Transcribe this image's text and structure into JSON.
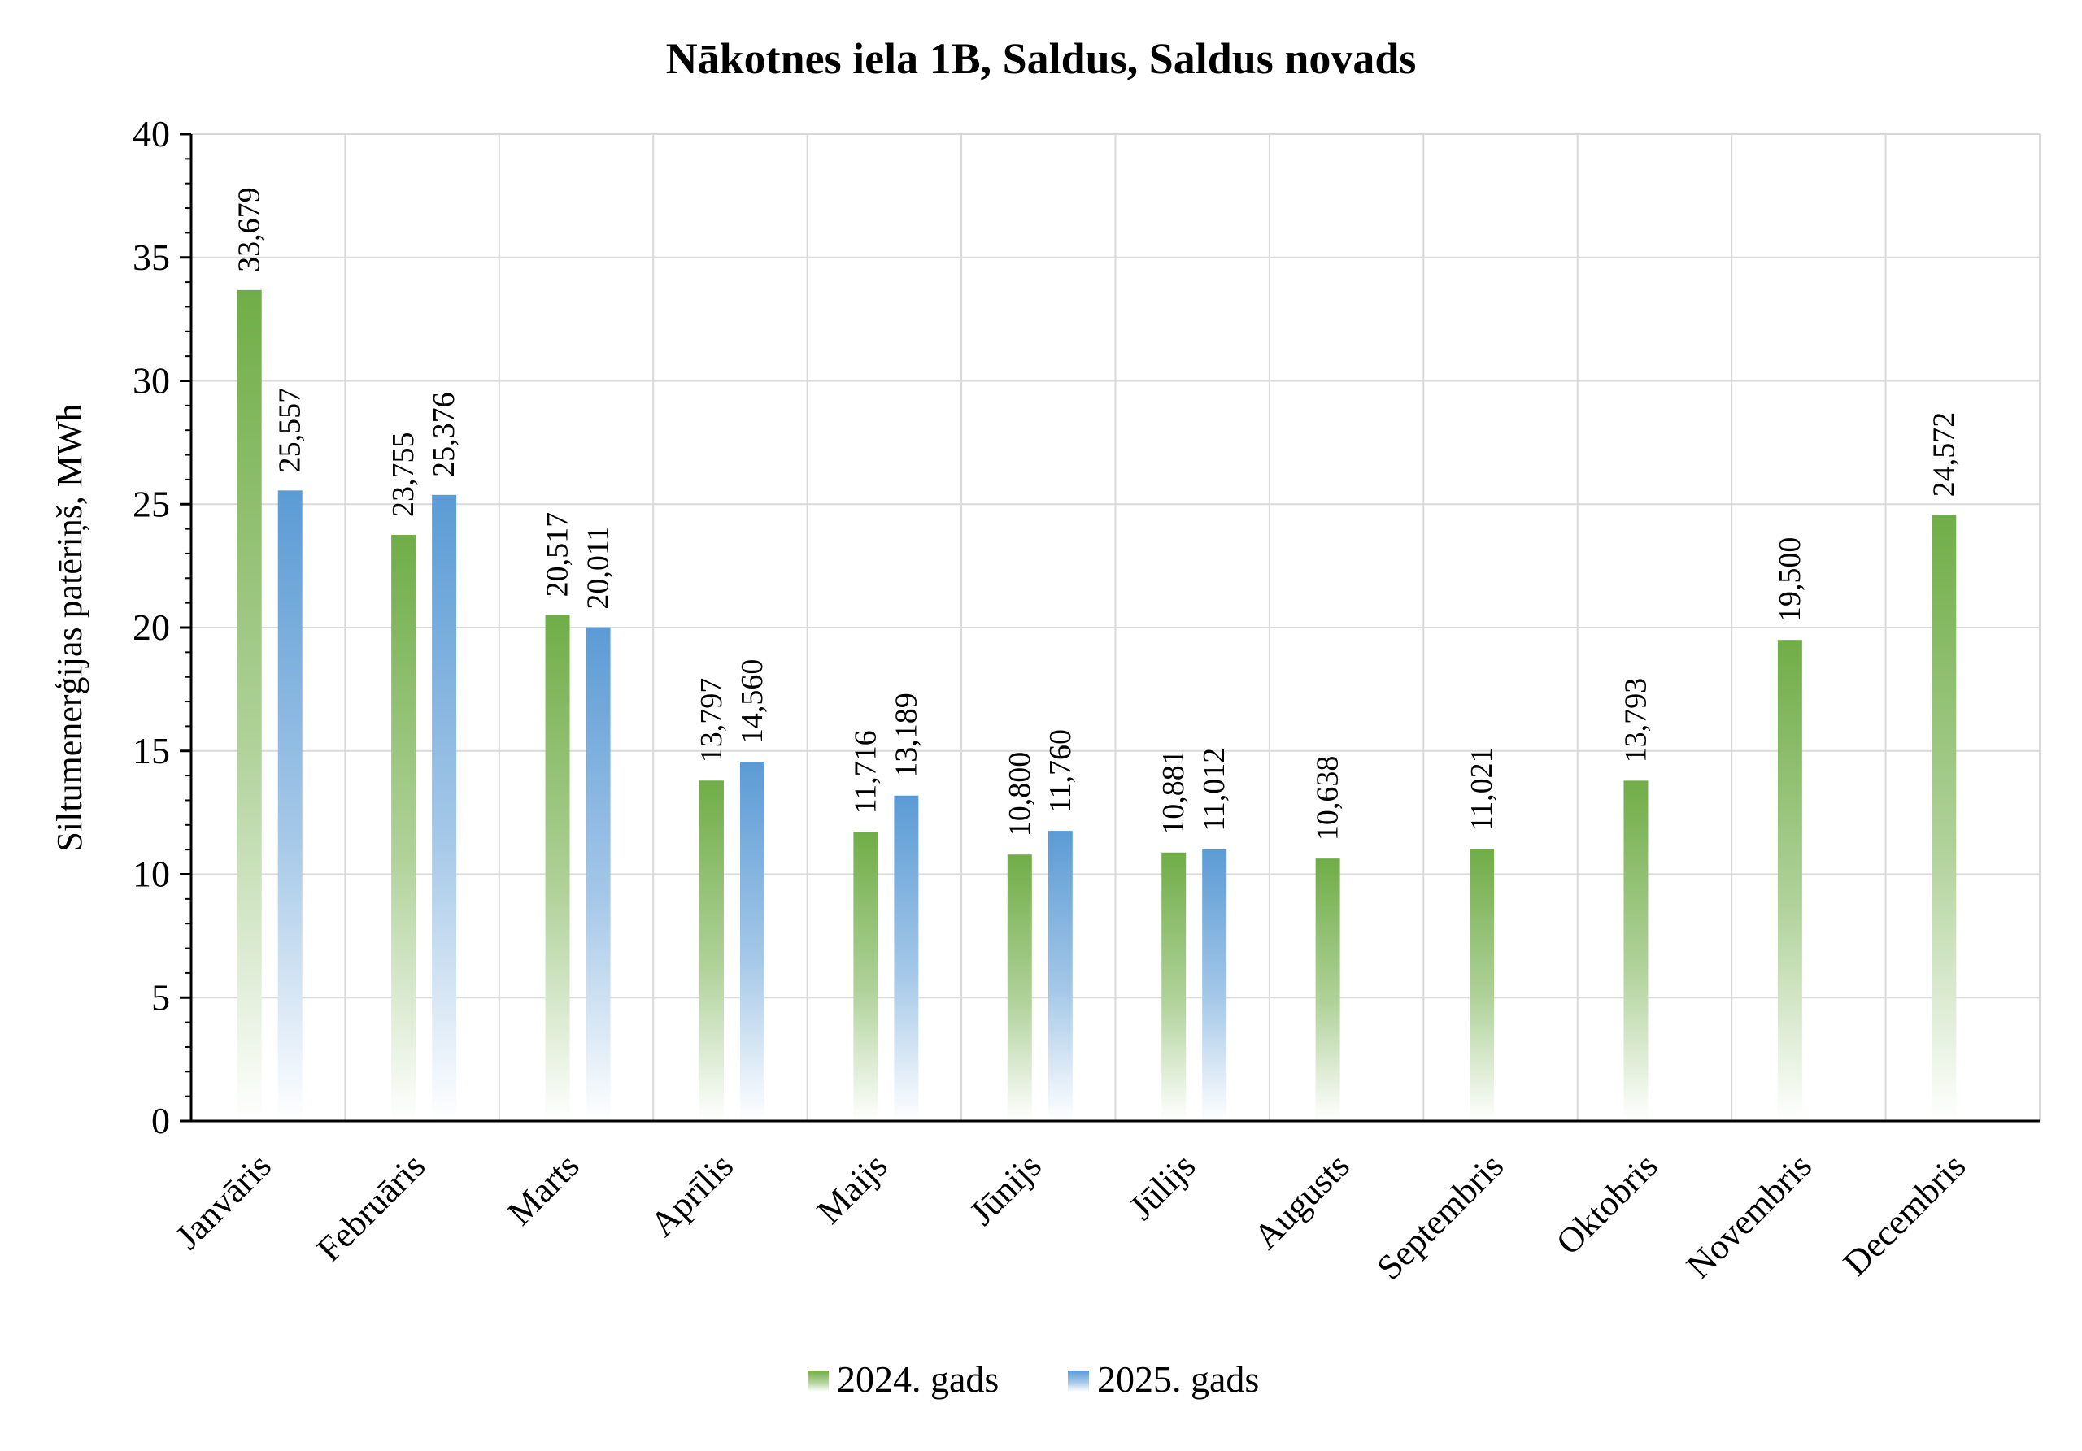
{
  "chart_data": {
    "type": "bar",
    "title": "Nākotnes iela 1B, Saldus, Saldus novads",
    "xlabel": "",
    "ylabel": "Siltumenerģijas patēriņš, MWh",
    "ylim": [
      0,
      40
    ],
    "ytick_values": [
      0,
      5,
      10,
      15,
      20,
      25,
      30,
      35,
      40
    ],
    "grid": true,
    "legend_position": "bottom",
    "categories": [
      "Janvāris",
      "Februāris",
      "Marts",
      "Aprīlis",
      "Maijs",
      "Jūnijs",
      "Jūlijs",
      "Augusts",
      "Septembris",
      "Oktobris",
      "Novembris",
      "Decembris"
    ],
    "series": [
      {
        "name": "2024. gads",
        "color": "#70ad47",
        "values": [
          33.679,
          23.755,
          20.517,
          13.797,
          11.716,
          10.8,
          10.881,
          10.638,
          11.021,
          13.793,
          19.5,
          24.572
        ],
        "labels": [
          "33,679",
          "23,755",
          "20,517",
          "13,797",
          "11,716",
          "10,800",
          "10,881",
          "10,638",
          "11,021",
          "13,793",
          "19,500",
          "24,572"
        ]
      },
      {
        "name": "2025. gads",
        "color": "#5b9bd5",
        "values": [
          25.557,
          25.376,
          20.011,
          14.56,
          13.189,
          11.76,
          11.012,
          null,
          null,
          null,
          null,
          null
        ],
        "labels": [
          "25,557",
          "25,376",
          "20,011",
          "14,560",
          "13,189",
          "11,760",
          "11,012",
          null,
          null,
          null,
          null,
          null
        ]
      }
    ]
  }
}
